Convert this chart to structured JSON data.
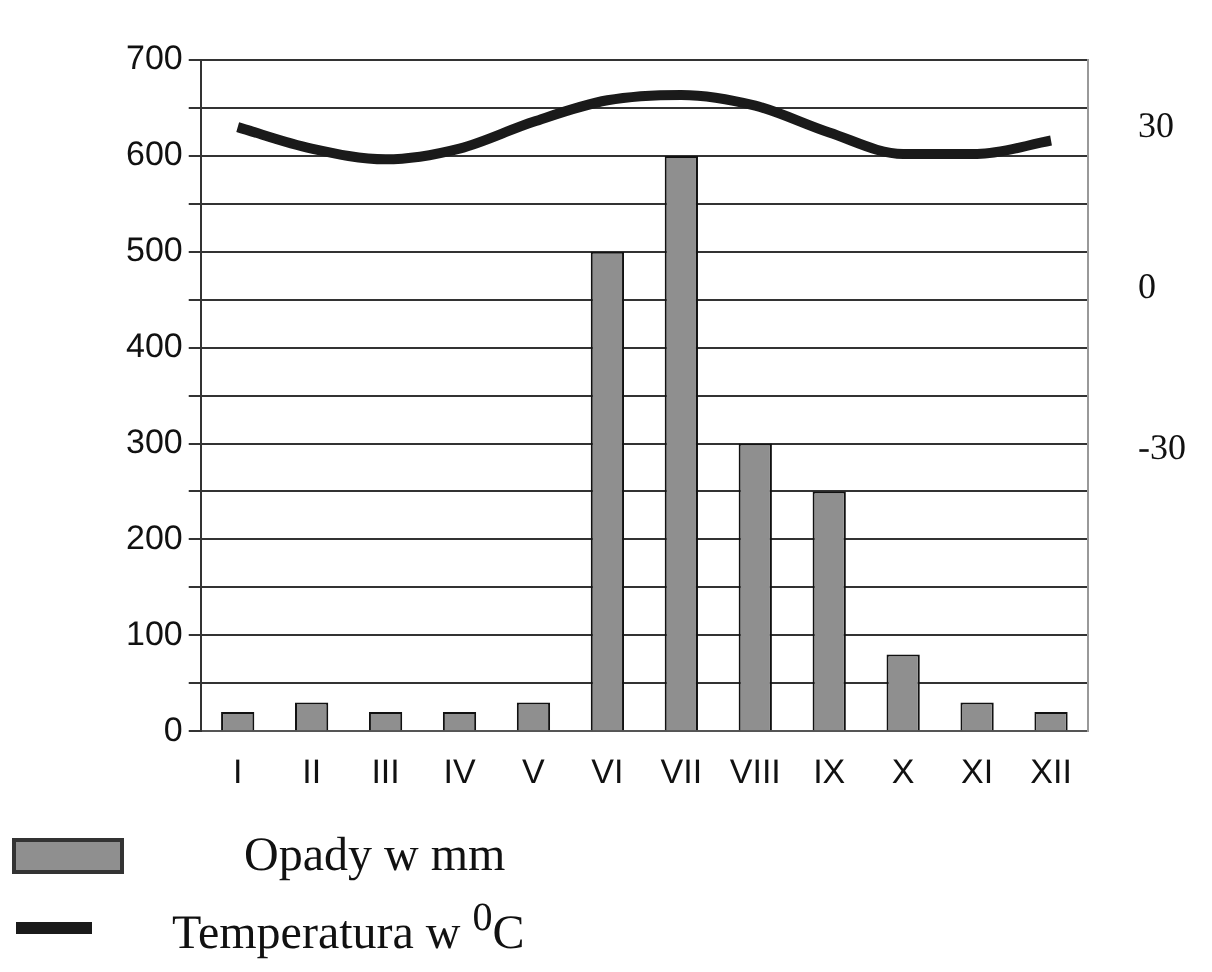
{
  "chart_data": {
    "type": "bar",
    "categories": [
      "I",
      "II",
      "III",
      "IV",
      "V",
      "VI",
      "VII",
      "VIII",
      "IX",
      "X",
      "XI",
      "XII"
    ],
    "series": [
      {
        "name": "Opady w mm",
        "color": "#8f8f8f",
        "values": [
          20,
          30,
          20,
          20,
          30,
          500,
          600,
          300,
          250,
          80,
          30,
          20
        ]
      },
      {
        "name": "Temperatura w $^{0}$C",
        "type": "line",
        "axis": "y2",
        "color": "#1a1a1a",
        "values": [
          30,
          26,
          24,
          26,
          31,
          35,
          36,
          34,
          29,
          25,
          25,
          27.5
        ]
      }
    ],
    "ylim": [
      0,
      700
    ],
    "yticks": [
      0,
      {
        "value": 50,
        "label": null
      },
      100,
      {
        "value": 150,
        "label": null
      },
      200,
      {
        "value": 250,
        "label": null
      },
      300,
      {
        "value": 350,
        "label": null
      },
      400,
      {
        "value": 450,
        "label": null
      },
      500,
      {
        "value": 550,
        "label": null
      },
      600,
      {
        "value": 650,
        "label": null
      },
      700
    ],
    "y2lim": [
      -82.5,
      42.5
    ],
    "y2ticks": [
      -30,
      0,
      30
    ],
    "grid": "y",
    "legend": "bottom left",
    "marker": "none",
    "line_style": "solid"
  }
}
